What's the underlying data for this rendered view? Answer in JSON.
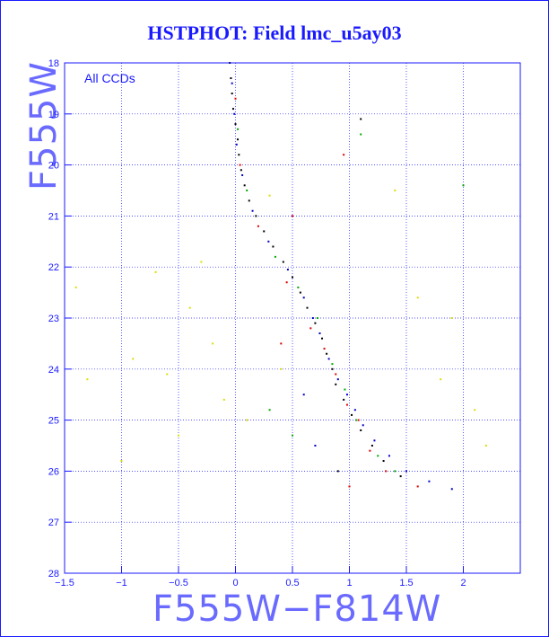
{
  "chart_data": {
    "type": "scatter",
    "title": "HSTPHOT: Field lmc_u5ay03",
    "xlabel": "F555W−F814W",
    "ylabel": "F555W",
    "annotation": "All CCDs",
    "xlim": [
      -1.5,
      2.5
    ],
    "ylim": [
      28,
      18
    ],
    "y_inverted": true,
    "grid": true,
    "x_ticks": [
      -1.5,
      -1,
      -0.5,
      0,
      0.5,
      1,
      1.5,
      2
    ],
    "x_tick_labels": [
      "−1.5",
      "−1",
      "−0.5",
      "0",
      "0.5",
      "1",
      "1.5",
      "2"
    ],
    "y_ticks": [
      18,
      19,
      20,
      21,
      22,
      23,
      24,
      25,
      26,
      27,
      28
    ],
    "y_tick_labels": [
      "18",
      "19",
      "20",
      "21",
      "22",
      "23",
      "24",
      "25",
      "26",
      "27",
      "28"
    ],
    "colors": {
      "frame": "#1a1aff",
      "grid": "#1a1aff",
      "series": [
        "#000000",
        "#0000cc",
        "#dd0000",
        "#00aa00",
        "#dddd00"
      ]
    },
    "series": [
      {
        "color": "#000000",
        "points": [
          [
            -0.05,
            18.0
          ],
          [
            -0.04,
            18.3
          ],
          [
            -0.03,
            18.6
          ],
          [
            -0.02,
            18.9
          ],
          [
            0.0,
            19.2
          ],
          [
            0.02,
            19.5
          ],
          [
            0.03,
            19.8
          ],
          [
            0.05,
            20.1
          ],
          [
            0.08,
            20.4
          ],
          [
            0.12,
            20.7
          ],
          [
            0.18,
            21.0
          ],
          [
            0.25,
            21.3
          ],
          [
            0.33,
            21.6
          ],
          [
            0.42,
            21.9
          ],
          [
            0.5,
            22.2
          ],
          [
            0.57,
            22.5
          ],
          [
            0.63,
            22.8
          ],
          [
            0.7,
            23.1
          ],
          [
            0.76,
            23.4
          ],
          [
            0.8,
            23.7
          ],
          [
            0.85,
            24.0
          ],
          [
            0.88,
            24.3
          ],
          [
            0.95,
            24.6
          ],
          [
            1.02,
            24.9
          ],
          [
            1.1,
            25.2
          ],
          [
            1.2,
            25.5
          ],
          [
            1.3,
            25.8
          ],
          [
            1.45,
            26.1
          ],
          [
            1.1,
            19.1
          ],
          [
            0.9,
            26.0
          ]
        ]
      },
      {
        "color": "#0000cc",
        "points": [
          [
            -0.03,
            18.4
          ],
          [
            -0.01,
            19.0
          ],
          [
            0.01,
            19.6
          ],
          [
            0.06,
            20.2
          ],
          [
            0.15,
            20.9
          ],
          [
            0.29,
            21.5
          ],
          [
            0.46,
            22.05
          ],
          [
            0.6,
            22.6
          ],
          [
            0.68,
            23.0
          ],
          [
            0.74,
            23.3
          ],
          [
            0.82,
            23.8
          ],
          [
            0.9,
            24.2
          ],
          [
            0.98,
            24.5
          ],
          [
            1.05,
            24.8
          ],
          [
            1.12,
            25.1
          ],
          [
            1.22,
            25.4
          ],
          [
            1.35,
            25.7
          ],
          [
            1.5,
            26.0
          ],
          [
            1.7,
            26.2
          ],
          [
            1.9,
            26.35
          ],
          [
            0.6,
            24.5
          ],
          [
            0.7,
            25.5
          ]
        ]
      },
      {
        "color": "#dd0000",
        "points": [
          [
            0.0,
            18.7
          ],
          [
            0.04,
            20.0
          ],
          [
            0.2,
            21.2
          ],
          [
            0.45,
            22.3
          ],
          [
            0.66,
            23.2
          ],
          [
            0.78,
            23.6
          ],
          [
            0.88,
            24.1
          ],
          [
            0.98,
            24.7
          ],
          [
            1.08,
            25.0
          ],
          [
            1.18,
            25.6
          ],
          [
            1.32,
            26.0
          ],
          [
            1.6,
            26.3
          ],
          [
            0.5,
            21.0
          ],
          [
            0.4,
            23.5
          ],
          [
            1.0,
            26.3
          ],
          [
            0.95,
            19.8
          ]
        ]
      },
      {
        "color": "#00aa00",
        "points": [
          [
            0.02,
            19.3
          ],
          [
            0.1,
            20.5
          ],
          [
            0.35,
            21.8
          ],
          [
            0.55,
            22.4
          ],
          [
            0.72,
            23.0
          ],
          [
            0.85,
            23.9
          ],
          [
            0.96,
            24.4
          ],
          [
            1.06,
            25.0
          ],
          [
            1.25,
            25.7
          ],
          [
            1.4,
            26.0
          ],
          [
            1.1,
            19.4
          ],
          [
            0.3,
            24.8
          ],
          [
            0.5,
            25.3
          ],
          [
            2.0,
            20.4
          ]
        ]
      },
      {
        "color": "#dddd00",
        "points": [
          [
            -1.4,
            22.4
          ],
          [
            -1.3,
            24.2
          ],
          [
            -0.9,
            23.8
          ],
          [
            -0.6,
            24.1
          ],
          [
            -0.4,
            22.8
          ],
          [
            -0.2,
            23.5
          ],
          [
            -0.1,
            24.6
          ],
          [
            0.1,
            25.0
          ],
          [
            -0.5,
            25.3
          ],
          [
            0.3,
            20.6
          ],
          [
            1.4,
            20.5
          ],
          [
            1.6,
            22.6
          ],
          [
            1.8,
            24.2
          ],
          [
            2.1,
            24.8
          ],
          [
            2.2,
            25.5
          ],
          [
            -1.0,
            25.8
          ],
          [
            0.4,
            24.0
          ],
          [
            1.9,
            23.0
          ],
          [
            -0.7,
            22.1
          ],
          [
            -0.3,
            21.9
          ]
        ]
      }
    ]
  }
}
